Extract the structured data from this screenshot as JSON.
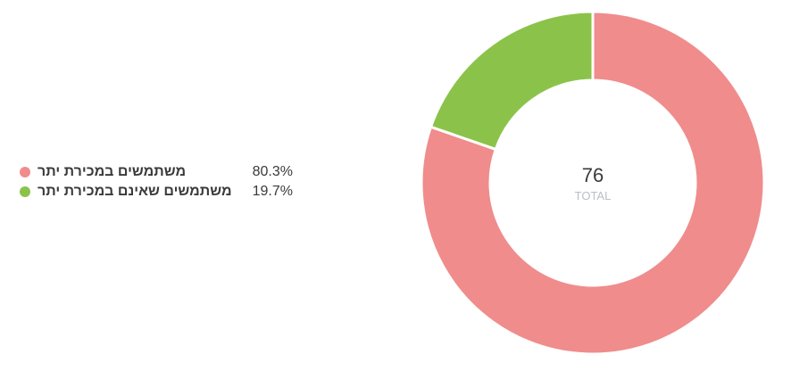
{
  "chart_data": {
    "type": "pie",
    "center": {
      "total": "76",
      "caption": "TOTAL"
    },
    "slices": [
      {
        "label": "משתמשים במכירת יתר",
        "value": 80.3,
        "display": "80.3%",
        "color": "#f08c8c"
      },
      {
        "label": "משתמשים שאינם במכירת יתר",
        "value": 19.7,
        "display": "19.7%",
        "color": "#8bc34a"
      }
    ]
  }
}
